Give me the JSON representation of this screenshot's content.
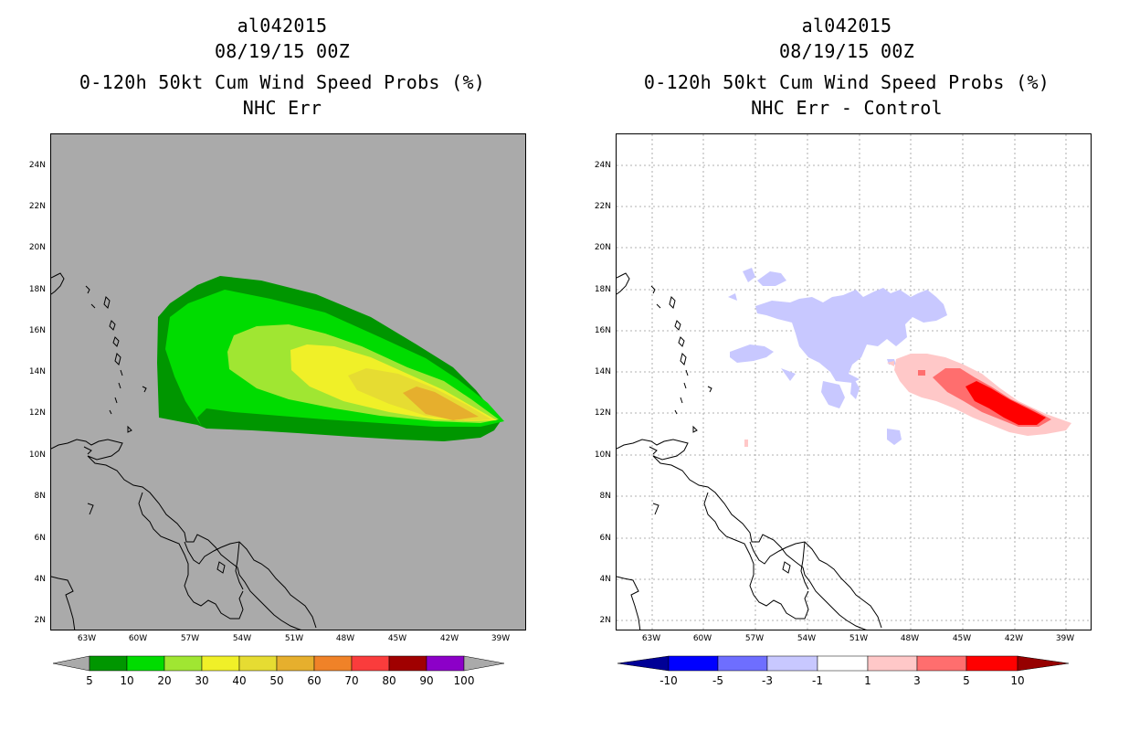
{
  "left_panel": {
    "title_id": "al042015",
    "title_time": "08/19/15 00Z",
    "title_product": "0-120h 50kt Cum Wind Speed Probs (%)",
    "title_subtitle": "NHC Err",
    "lat_labels": [
      "24N",
      "22N",
      "20N",
      "18N",
      "16N",
      "14N",
      "12N",
      "10N",
      "8N",
      "6N",
      "4N",
      "2N"
    ],
    "lon_labels": [
      "63W",
      "60W",
      "57W",
      "54W",
      "51W",
      "48W",
      "45W",
      "42W",
      "39W"
    ],
    "colorbar": {
      "labels": [
        "5",
        "10",
        "20",
        "30",
        "40",
        "50",
        "60",
        "70",
        "80",
        "90",
        "100"
      ],
      "colors": [
        "#009600",
        "#00dc00",
        "#a0e632",
        "#f0f028",
        "#e6dc32",
        "#e6af2d",
        "#f08228",
        "#fa3c3c",
        "#a00000",
        "#8c00c8",
        "#a0a0a0"
      ]
    }
  },
  "right_panel": {
    "title_id": "al042015",
    "title_time": "08/19/15 00Z",
    "title_product": "0-120h 50kt Cum Wind Speed Probs (%)",
    "title_subtitle": "NHC Err - Control",
    "lat_labels": [
      "24N",
      "22N",
      "20N",
      "18N",
      "16N",
      "14N",
      "12N",
      "10N",
      "8N",
      "6N",
      "4N",
      "2N"
    ],
    "lon_labels": [
      "63W",
      "60W",
      "57W",
      "54W",
      "51W",
      "48W",
      "45W",
      "42W",
      "39W"
    ],
    "colorbar": {
      "labels": [
        "-10",
        "-5",
        "-3",
        "-1",
        "1",
        "3",
        "5",
        "10"
      ],
      "colors": [
        "#000096",
        "#0000ff",
        "#6e6eff",
        "#c8c8ff",
        "#ffffff",
        "#ffc8c8",
        "#ff6e6e",
        "#ff0000",
        "#960000"
      ]
    }
  },
  "colors": {
    "map_background": "#aaaaaa",
    "coastline": "#000000",
    "grid": "#999999"
  }
}
